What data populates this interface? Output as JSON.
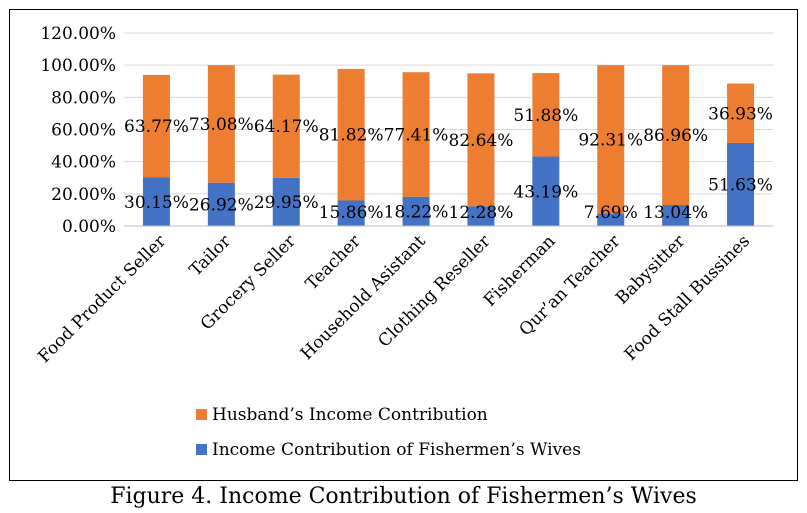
{
  "caption": "Figure 4. Income Contribution of Fishermen’s Wives",
  "colors": {
    "husband": "#ED7D31",
    "wives": "#4472C4",
    "grid": "#d9d9d9",
    "text": "#000000"
  },
  "chart_data": {
    "type": "bar",
    "stacked": true,
    "categories": [
      "Food Product Seller",
      "Tailor",
      "Grocery Seller",
      "Teacher",
      "Household Asistant",
      "Clothing Reseller",
      "Fisherman",
      "Qur’an Teacher",
      "Babysitter",
      "Food Stall Bussines"
    ],
    "series": [
      {
        "name": "Income Contribution of Fishermen’s Wives",
        "values": [
          30.15,
          26.92,
          29.95,
          15.86,
          18.22,
          12.28,
          43.19,
          7.69,
          13.04,
          51.63
        ],
        "labels": [
          "30.15%",
          "26.92%",
          "29.95%",
          "15.86%",
          "18.22%",
          "12.28%",
          "43.19%",
          "7.69%",
          "13.04%",
          "51.63%"
        ]
      },
      {
        "name": "Husband’s Income Contribution",
        "values": [
          63.77,
          73.08,
          64.17,
          81.82,
          77.41,
          82.64,
          51.88,
          92.31,
          86.96,
          36.93
        ],
        "labels": [
          "63.77%",
          "73.08%",
          "64.17%",
          "81.82%",
          "77.41%",
          "82.64%",
          "51.88%",
          "92.31%",
          "86.96%",
          "36.93%"
        ]
      }
    ],
    "yticks": [
      "0.00%",
      "20.00%",
      "40.00%",
      "60.00%",
      "80.00%",
      "100.00%",
      "120.00%"
    ],
    "ylim": [
      0,
      120
    ],
    "grid": true,
    "legend": [
      "Husband’s Income Contribution",
      "Income Contribution of Fishermen’s Wives"
    ],
    "legend_position": "bottom"
  }
}
